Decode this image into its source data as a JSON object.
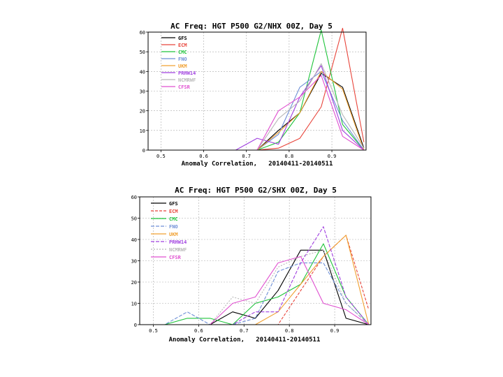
{
  "chart_data": [
    {
      "type": "line",
      "title": "AC Freq: HGT P500  G2/NHX 00Z, Day 5",
      "xlabel": "Anomaly Correlation,   20140411-20140511",
      "ylabel": "",
      "xlim": [
        0.47,
        0.98
      ],
      "ylim": [
        0,
        60
      ],
      "xticks": [
        "0.5",
        "0.6",
        "0.7",
        "0.8",
        "0.9"
      ],
      "yticks": [
        "0",
        "10",
        "20",
        "30",
        "40",
        "50",
        "60"
      ],
      "x": [
        0.575,
        0.625,
        0.675,
        0.725,
        0.775,
        0.825,
        0.875,
        0.925,
        0.975
      ],
      "series": [
        {
          "name": "GFS",
          "color": "#000000",
          "values": [
            0,
            0,
            0,
            0,
            10,
            19,
            39,
            32,
            1
          ]
        },
        {
          "name": "ECM",
          "color": "#e8443a",
          "values": [
            0,
            0,
            0,
            0,
            1,
            6,
            22,
            62,
            4
          ]
        },
        {
          "name": "CMC",
          "color": "#1fc43b",
          "values": [
            0,
            0,
            0,
            0,
            4,
            19,
            61,
            13,
            0
          ]
        },
        {
          "name": "FNO",
          "color": "#6e8fd6",
          "values": [
            0,
            0,
            0,
            0,
            8,
            32,
            40,
            15,
            0
          ]
        },
        {
          "name": "UKM",
          "color": "#f0a030",
          "values": [
            0,
            0,
            0,
            0,
            9,
            19,
            40,
            31,
            0
          ]
        },
        {
          "name": "PRHW14",
          "color": "#a040e0",
          "values": [
            0,
            0,
            0,
            6,
            3,
            27,
            43,
            10,
            0
          ]
        },
        {
          "name": "NCMRWF",
          "color": "#b8b8b8",
          "values": [
            0,
            0,
            0,
            0,
            16,
            25,
            44,
            18,
            1
          ]
        },
        {
          "name": "CFSR",
          "color": "#e050d0",
          "values": [
            0,
            0,
            0,
            0,
            20,
            27,
            38,
            7,
            0
          ]
        }
      ]
    },
    {
      "type": "line",
      "title": "AC Freq: HGT P500  G2/SHX 00Z, Day 5",
      "xlabel": "Anomaly Correlation,   20140411-20140511",
      "ylabel": "",
      "xlim": [
        0.47,
        0.98
      ],
      "ylim": [
        0,
        60
      ],
      "xticks": [
        "0.5",
        "0.6",
        "0.7",
        "0.8",
        "0.9"
      ],
      "yticks": [
        "0",
        "10",
        "20",
        "30",
        "40",
        "50",
        "60"
      ],
      "x": [
        0.475,
        0.525,
        0.575,
        0.625,
        0.675,
        0.725,
        0.775,
        0.825,
        0.875,
        0.925,
        0.975
      ],
      "series": [
        {
          "name": "GFS",
          "color": "#000000",
          "values": [
            0,
            0,
            0,
            0,
            6,
            3,
            16,
            35,
            35,
            3,
            0
          ]
        },
        {
          "name": "ECM",
          "color": "#e8443a",
          "values": [
            0,
            0,
            0,
            0,
            0,
            0,
            0,
            16,
            32,
            42,
            7
          ]
        },
        {
          "name": "CMC",
          "color": "#1fc43b",
          "values": [
            0,
            0,
            3,
            3,
            0,
            10,
            13,
            19,
            38,
            13,
            0
          ]
        },
        {
          "name": "FNO",
          "color": "#6e8fd6",
          "values": [
            0,
            0,
            6,
            0,
            0,
            3,
            25,
            29,
            29,
            10,
            0
          ]
        },
        {
          "name": "UKM",
          "color": "#f0a030",
          "values": [
            0,
            0,
            0,
            0,
            0,
            0,
            6,
            19,
            32,
            42,
            0
          ]
        },
        {
          "name": "PRHW14",
          "color": "#a040e0",
          "values": [
            0,
            0,
            0,
            0,
            0,
            6,
            6,
            29,
            46,
            13,
            0
          ]
        },
        {
          "name": "NCMRWF",
          "color": "#b8b8b8",
          "values": [
            0,
            0,
            0,
            0,
            13,
            10,
            27,
            32,
            35,
            10,
            0
          ]
        },
        {
          "name": "CFSR",
          "color": "#e050d0",
          "values": [
            0,
            0,
            0,
            0,
            10,
            13,
            29,
            32,
            10,
            7,
            0
          ]
        }
      ]
    }
  ]
}
